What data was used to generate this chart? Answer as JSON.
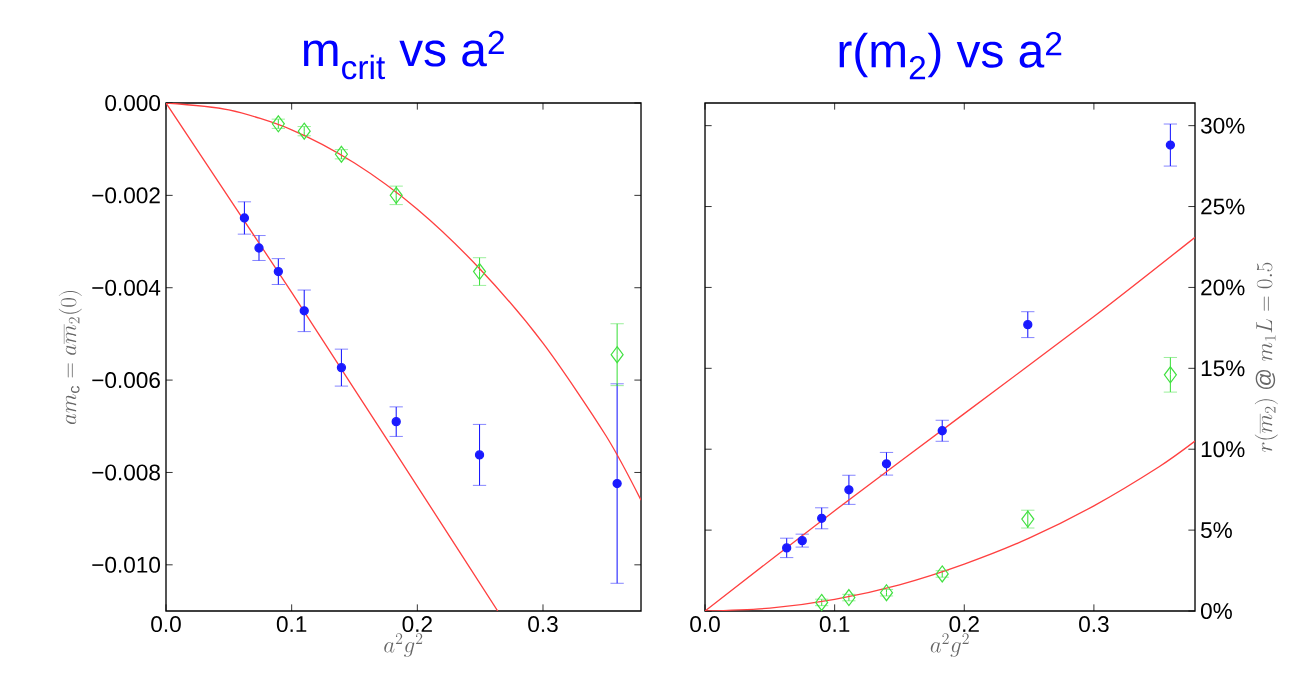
{
  "chart_data": [
    {
      "type": "scatter",
      "title": "m$_{crit}$ vs a$^{2}$",
      "xlabel": "a^2g^2",
      "ylabel": "am_{\\mathrm{c}} = a\\overline{m}_2(0)",
      "xlim": [
        0,
        0.378
      ],
      "ylim": [
        -0.011,
        0
      ],
      "xticks": [
        {
          "value": 0,
          "label": "0.0"
        },
        {
          "value": 0.1,
          "label": "0.1"
        },
        {
          "value": 0.2,
          "label": "0.2"
        },
        {
          "value": 0.3,
          "label": "0.3"
        }
      ],
      "yticks": [
        {
          "value": 0,
          "label": "0.000"
        },
        {
          "value": -0.002,
          "label": "−0.002"
        },
        {
          "value": -0.004,
          "label": "−0.004"
        },
        {
          "value": -0.006,
          "label": "−0.006"
        },
        {
          "value": -0.008,
          "label": "−0.008"
        },
        {
          "value": -0.01,
          "label": "−0.010"
        }
      ],
      "series": [
        {
          "marker": "circle",
          "color": "#1a1aff",
          "x": [
            0.0624,
            0.074,
            0.0894,
            0.11,
            0.1396,
            0.1832,
            0.2495,
            0.359
          ],
          "values": [
            -0.00249,
            -0.00314,
            -0.00365,
            -0.0045,
            -0.00573,
            -0.0069,
            -0.00762,
            -0.00824
          ],
          "errors": [
            0.00035,
            0.00027,
            0.00028,
            0.00045,
            0.0004,
            0.00032,
            0.00066,
            0.00216
          ]
        },
        {
          "marker": "diamond",
          "color": "#40e040",
          "x": [
            0.0894,
            0.11,
            0.1396,
            0.1832,
            0.2495,
            0.359
          ],
          "values": [
            -0.00045,
            -0.00061,
            -0.00111,
            -0.002,
            -0.00365,
            -0.00545
          ],
          "errors": [
            0.0001,
            0.0001,
            0.0001,
            0.0002,
            0.0003,
            0.00067
          ]
        },
        {
          "type": "line",
          "color": "#ff4040",
          "x": [
            0,
            0.05,
            0.1,
            0.15,
            0.2,
            0.264
          ],
          "values": [
            0,
            -0.00205,
            -0.0041,
            -0.0062,
            -0.0083,
            -0.011
          ]
        },
        {
          "type": "line",
          "color": "#ff4040",
          "x": [
            0,
            0.05,
            0.1,
            0.15,
            0.2,
            0.25,
            0.3,
            0.35,
            0.378
          ],
          "values": [
            0,
            -0.00015,
            -0.00058,
            -0.0013,
            -0.0023,
            -0.0036,
            -0.0052,
            -0.0072,
            -0.0086
          ]
        }
      ]
    },
    {
      "type": "scatter",
      "title": "r(m$_{2}$) vs a$^{2}$",
      "xlabel": "a^2g^2",
      "ylabel": "r(\\overline{m}_2)\\ @\\ m_1L = 0.5",
      "xlim": [
        0,
        0.378
      ],
      "ylim": [
        0,
        31.4
      ],
      "xticks": [
        {
          "value": 0,
          "label": "0.0"
        },
        {
          "value": 0.1,
          "label": "0.1"
        },
        {
          "value": 0.2,
          "label": "0.2"
        },
        {
          "value": 0.3,
          "label": "0.3"
        }
      ],
      "yticks": [
        {
          "value": 0,
          "label": "0%"
        },
        {
          "value": 5,
          "label": "5%"
        },
        {
          "value": 10,
          "label": "10%"
        },
        {
          "value": 15,
          "label": "15%"
        },
        {
          "value": 20,
          "label": "20%"
        },
        {
          "value": 25,
          "label": "25%"
        },
        {
          "value": 30,
          "label": "30%"
        }
      ],
      "series": [
        {
          "marker": "circle",
          "color": "#1a1aff",
          "x": [
            0.063,
            0.075,
            0.09,
            0.111,
            0.14,
            0.183,
            0.249,
            0.359
          ],
          "values": [
            3.9,
            4.35,
            5.73,
            7.49,
            9.1,
            11.14,
            17.7,
            28.8
          ],
          "errors": [
            0.6,
            0.4,
            0.65,
            0.9,
            0.7,
            0.65,
            0.8,
            1.3
          ]
        },
        {
          "marker": "diamond",
          "color": "#40e040",
          "x": [
            0.09,
            0.111,
            0.14,
            0.183,
            0.249,
            0.359
          ],
          "values": [
            0.53,
            0.83,
            1.13,
            2.29,
            5.68,
            14.6
          ],
          "errors": [
            0.2,
            0.2,
            0.2,
            0.2,
            0.55,
            1.07
          ]
        },
        {
          "type": "line",
          "color": "#ff4040",
          "x": [
            0,
            0.1,
            0.2,
            0.3,
            0.378
          ],
          "values": [
            0,
            6.2,
            12.2,
            18.2,
            23.1
          ]
        },
        {
          "type": "line",
          "color": "#ff4040",
          "x": [
            0,
            0.05,
            0.1,
            0.15,
            0.2,
            0.25,
            0.3,
            0.35,
            0.378
          ],
          "values": [
            0,
            0.18,
            0.72,
            1.62,
            2.9,
            4.5,
            6.5,
            8.9,
            10.5
          ]
        }
      ]
    }
  ]
}
